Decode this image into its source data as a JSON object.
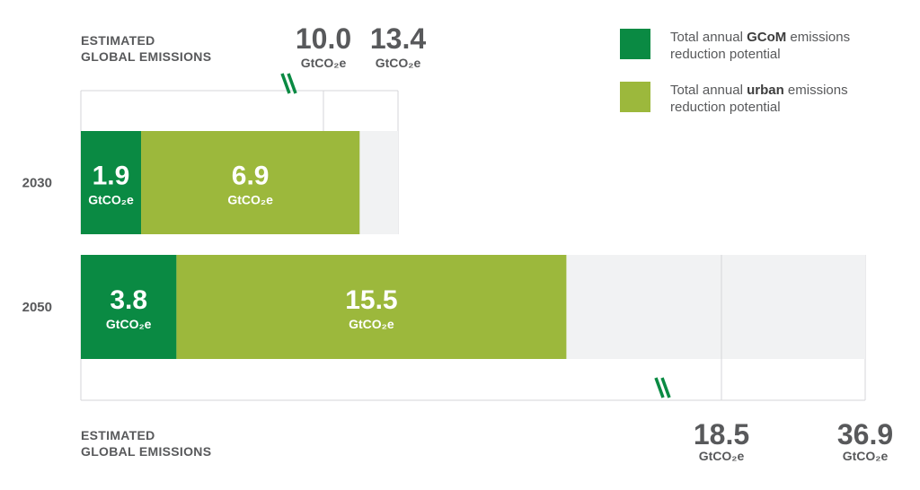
{
  "chart_data": {
    "type": "bar",
    "orientation": "horizontal",
    "stacked": true,
    "unit": "GtCO₂e",
    "categories": [
      "2030",
      "2050"
    ],
    "series": [
      {
        "name": "Total annual GCoM emissions reduction potential",
        "legend_parts": [
          "Total annual ",
          "GCoM",
          " emissions reduction potential"
        ],
        "color": "#0a8a43",
        "values": [
          1.9,
          3.8
        ],
        "labels": [
          "1.9",
          "3.8"
        ]
      },
      {
        "name": "Total annual urban emissions reduction potential",
        "legend_parts": [
          "Total annual ",
          "urban",
          " emissions reduction potential"
        ],
        "color": "#9cb83c",
        "values": [
          6.9,
          15.5
        ],
        "labels": [
          "6.9",
          "15.5"
        ]
      }
    ],
    "estimated_global_emissions": {
      "label_lines": [
        "ESTIMATED",
        "GLOBAL EMISSIONS"
      ],
      "2030": [
        {
          "value": 10.0,
          "label": "10.0",
          "unit": "GtCO₂e"
        },
        {
          "value": 13.4,
          "label": "13.4",
          "unit": "GtCO₂e"
        }
      ],
      "2050": [
        {
          "value": 18.5,
          "label": "18.5",
          "unit": "GtCO₂e"
        },
        {
          "value": 36.9,
          "label": "36.9",
          "unit": "GtCO₂e"
        }
      ]
    },
    "legend_position": "top-right",
    "axis_break": true
  }
}
